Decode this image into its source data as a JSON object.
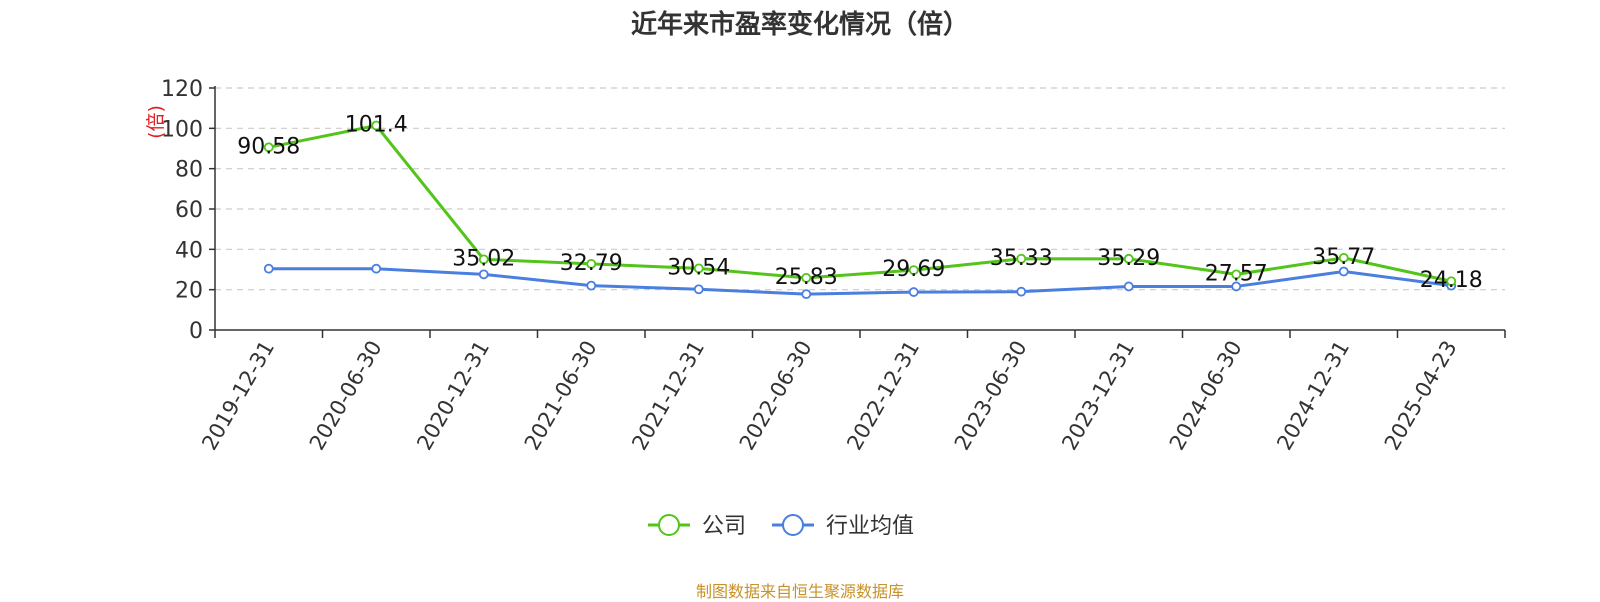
{
  "source_note": "制图数据来自恒生聚源数据库",
  "chart_data": {
    "type": "line",
    "title": "近年来市盈率变化情况（倍）",
    "ylabel": "(倍)",
    "xlabel": "",
    "ylim": [
      0,
      120
    ],
    "yticks": [
      0,
      20,
      40,
      60,
      80,
      100,
      120
    ],
    "grid": true,
    "legend_position": "bottom",
    "categories": [
      "2019-12-31",
      "2020-06-30",
      "2020-12-31",
      "2021-06-30",
      "2021-12-31",
      "2022-06-30",
      "2022-12-31",
      "2023-06-30",
      "2023-12-31",
      "2024-06-30",
      "2024-12-31",
      "2025-04-23"
    ],
    "series": [
      {
        "name": "公司",
        "color": "#52c41a",
        "values": [
          90.58,
          101.4,
          35.02,
          32.79,
          30.54,
          25.83,
          29.69,
          35.33,
          35.29,
          27.57,
          35.77,
          24.18
        ],
        "labels": [
          "90.58",
          "101.4",
          "35.02",
          "32.79",
          "30.54",
          "25.83",
          "29.69",
          "35.33",
          "35.29",
          "27.57",
          "35.77",
          "24.18"
        ]
      },
      {
        "name": "行业均值",
        "color": "#4a7fe0",
        "values": [
          30.4,
          30.4,
          27.6,
          22.0,
          20.2,
          17.8,
          18.8,
          19.0,
          21.6,
          21.6,
          29.0,
          22.0
        ]
      }
    ],
    "axis_color": "#333333",
    "grid_color": "#cccccc",
    "ylabel_color": "#e02020"
  }
}
